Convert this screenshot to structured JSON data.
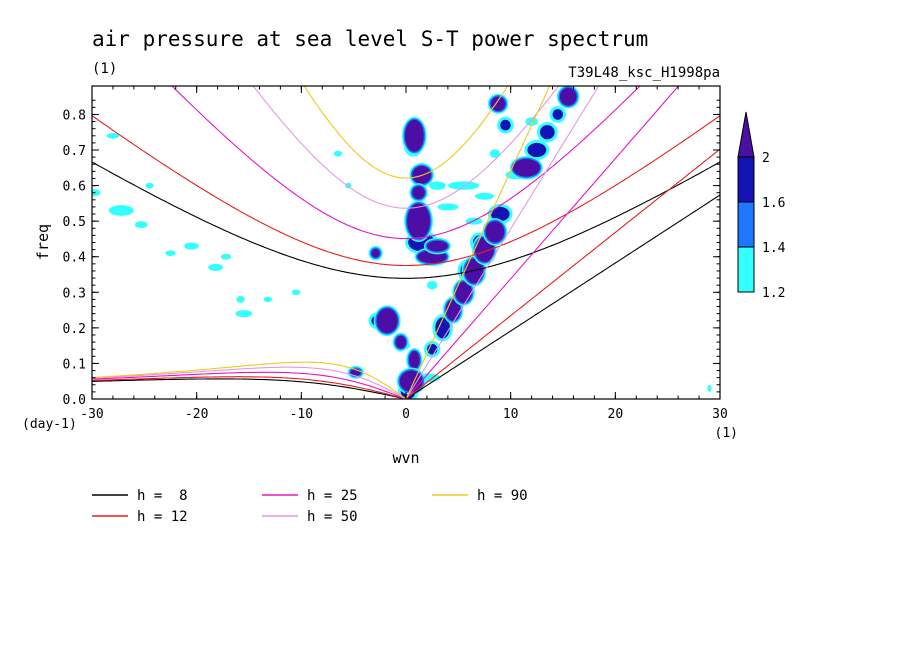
{
  "chart_data": {
    "type": "heatmap",
    "title": "air pressure at sea level S-T power spectrum",
    "subtitle_left": "(1)",
    "subtitle_right": "T39L48_ksc_H1998pa",
    "xlabel": "wvn",
    "ylabel": "freq",
    "x_unit": "(1)",
    "y_unit": "(day-1)",
    "xlim": [
      -30,
      30
    ],
    "ylim": [
      0,
      0.88
    ],
    "x_ticks": [
      -30,
      -20,
      -10,
      0,
      10,
      20,
      30
    ],
    "x_tick_labels": [
      "-30",
      "-20",
      "-10",
      "0",
      "10",
      "20",
      "30"
    ],
    "y_ticks": [
      0,
      0.1,
      0.2,
      0.3,
      0.4,
      0.5,
      0.6,
      0.7,
      0.8
    ],
    "y_tick_labels": [
      "0.0",
      "0.1",
      "0.2",
      "0.3",
      "0.4",
      "0.5",
      "0.6",
      "0.7",
      "0.8"
    ],
    "colorbar": {
      "levels": [
        "1.2",
        "1.4",
        "1.6",
        "2"
      ],
      "colors": [
        "#33ffff",
        "#1e78ff",
        "#1414b4",
        "#4b0fa5"
      ]
    },
    "dispersion_curves": [
      {
        "name": "h =  8",
        "h": 8,
        "color": "#000000"
      },
      {
        "name": "h = 12",
        "h": 12,
        "color": "#e61e1e"
      },
      {
        "name": "h = 25",
        "h": 25,
        "color": "#e614c8"
      },
      {
        "name": "h = 50",
        "h": 50,
        "color": "#e696e6"
      },
      {
        "name": "h = 90",
        "h": 90,
        "color": "#f0c81e"
      }
    ],
    "blobs": [
      {
        "x": 0.8,
        "y": 0.74,
        "rx": 0.9,
        "ry": 0.045,
        "level": 3
      },
      {
        "x": 0.7,
        "y": 0.71,
        "rx": 0.6,
        "ry": 0.02,
        "level": 2
      },
      {
        "x": 1.5,
        "y": 0.63,
        "rx": 0.9,
        "ry": 0.025,
        "level": 3
      },
      {
        "x": 1.2,
        "y": 0.58,
        "rx": 0.6,
        "ry": 0.018,
        "level": 3
      },
      {
        "x": 1.2,
        "y": 0.5,
        "rx": 1.1,
        "ry": 0.05,
        "level": 3
      },
      {
        "x": 1.5,
        "y": 0.44,
        "rx": 1.3,
        "ry": 0.025,
        "level": 2
      },
      {
        "x": 2.5,
        "y": 0.4,
        "rx": 1.4,
        "ry": 0.018,
        "level": 3
      },
      {
        "x": 3.0,
        "y": 0.43,
        "rx": 1.0,
        "ry": 0.015,
        "level": 3
      },
      {
        "x": -2.9,
        "y": 0.41,
        "rx": 0.4,
        "ry": 0.012,
        "level": 3
      },
      {
        "x": -1.8,
        "y": 0.22,
        "rx": 1.0,
        "ry": 0.035,
        "level": 3
      },
      {
        "x": -2.7,
        "y": 0.22,
        "rx": 0.6,
        "ry": 0.015,
        "level": 2
      },
      {
        "x": -0.5,
        "y": 0.16,
        "rx": 0.5,
        "ry": 0.018,
        "level": 3
      },
      {
        "x": 0.8,
        "y": 0.11,
        "rx": 0.5,
        "ry": 0.025,
        "level": 3
      },
      {
        "x": 0.5,
        "y": 0.05,
        "rx": 1.1,
        "ry": 0.03,
        "level": 3
      },
      {
        "x": 0.2,
        "y": 0.02,
        "rx": 0.7,
        "ry": 0.02,
        "level": 2
      },
      {
        "x": -4.8,
        "y": 0.075,
        "rx": 0.5,
        "ry": 0.01,
        "level": 3
      },
      {
        "x": 2.5,
        "y": 0.14,
        "rx": 0.5,
        "ry": 0.015,
        "level": 2
      },
      {
        "x": 3.5,
        "y": 0.2,
        "rx": 0.7,
        "ry": 0.03,
        "level": 2
      },
      {
        "x": 4.5,
        "y": 0.25,
        "rx": 0.7,
        "ry": 0.03,
        "level": 3
      },
      {
        "x": 5.5,
        "y": 0.3,
        "rx": 0.8,
        "ry": 0.03,
        "level": 3
      },
      {
        "x": 6.5,
        "y": 0.36,
        "rx": 0.9,
        "ry": 0.035,
        "level": 3
      },
      {
        "x": 7.5,
        "y": 0.42,
        "rx": 0.9,
        "ry": 0.035,
        "level": 3
      },
      {
        "x": 8.5,
        "y": 0.47,
        "rx": 0.9,
        "ry": 0.03,
        "level": 3
      },
      {
        "x": 6.0,
        "y": 0.36,
        "rx": 0.8,
        "ry": 0.025,
        "level": 2
      },
      {
        "x": 7.0,
        "y": 0.44,
        "rx": 0.6,
        "ry": 0.02,
        "level": 2
      },
      {
        "x": 9.0,
        "y": 0.52,
        "rx": 0.9,
        "ry": 0.02,
        "level": 2
      },
      {
        "x": 11.5,
        "y": 0.65,
        "rx": 1.3,
        "ry": 0.025,
        "level": 3
      },
      {
        "x": 12.5,
        "y": 0.7,
        "rx": 0.9,
        "ry": 0.02,
        "level": 2
      },
      {
        "x": 13.5,
        "y": 0.75,
        "rx": 0.7,
        "ry": 0.02,
        "level": 2
      },
      {
        "x": 15.5,
        "y": 0.85,
        "rx": 0.8,
        "ry": 0.025,
        "level": 3
      },
      {
        "x": 8.8,
        "y": 0.83,
        "rx": 0.7,
        "ry": 0.02,
        "level": 3
      },
      {
        "x": 9.5,
        "y": 0.77,
        "rx": 0.5,
        "ry": 0.015,
        "level": 2
      },
      {
        "x": 14.5,
        "y": 0.8,
        "rx": 0.5,
        "ry": 0.015,
        "level": 2
      },
      {
        "x": -28,
        "y": 0.74,
        "rx": 0.6,
        "ry": 0.008,
        "level": 1
      },
      {
        "x": -29.8,
        "y": 0.58,
        "rx": 0.6,
        "ry": 0.01,
        "level": 1
      },
      {
        "x": -27.2,
        "y": 0.53,
        "rx": 1.2,
        "ry": 0.015,
        "level": 1
      },
      {
        "x": -25.3,
        "y": 0.49,
        "rx": 0.6,
        "ry": 0.01,
        "level": 1
      },
      {
        "x": -24.5,
        "y": 0.6,
        "rx": 0.4,
        "ry": 0.008,
        "level": 1
      },
      {
        "x": -20.5,
        "y": 0.43,
        "rx": 0.7,
        "ry": 0.01,
        "level": 1
      },
      {
        "x": -22.5,
        "y": 0.41,
        "rx": 0.5,
        "ry": 0.008,
        "level": 1
      },
      {
        "x": -18.2,
        "y": 0.37,
        "rx": 0.7,
        "ry": 0.01,
        "level": 1
      },
      {
        "x": -17.2,
        "y": 0.4,
        "rx": 0.5,
        "ry": 0.008,
        "level": 1
      },
      {
        "x": -15.5,
        "y": 0.24,
        "rx": 0.8,
        "ry": 0.01,
        "level": 1
      },
      {
        "x": -15.8,
        "y": 0.28,
        "rx": 0.4,
        "ry": 0.01,
        "level": 1
      },
      {
        "x": -13.2,
        "y": 0.28,
        "rx": 0.4,
        "ry": 0.008,
        "level": 1
      },
      {
        "x": -10.5,
        "y": 0.3,
        "rx": 0.4,
        "ry": 0.008,
        "level": 1
      },
      {
        "x": -6.5,
        "y": 0.69,
        "rx": 0.4,
        "ry": 0.008,
        "level": 1
      },
      {
        "x": -5.5,
        "y": 0.6,
        "rx": 0.3,
        "ry": 0.008,
        "level": 1
      },
      {
        "x": 3.0,
        "y": 0.6,
        "rx": 0.8,
        "ry": 0.012,
        "level": 1
      },
      {
        "x": 5.5,
        "y": 0.6,
        "rx": 1.5,
        "ry": 0.012,
        "level": 1
      },
      {
        "x": 4.0,
        "y": 0.54,
        "rx": 1.0,
        "ry": 0.01,
        "level": 1
      },
      {
        "x": 6.5,
        "y": 0.5,
        "rx": 0.8,
        "ry": 0.01,
        "level": 1
      },
      {
        "x": 7.5,
        "y": 0.57,
        "rx": 0.9,
        "ry": 0.01,
        "level": 1
      },
      {
        "x": 10.5,
        "y": 0.63,
        "rx": 1.0,
        "ry": 0.012,
        "level": 1
      },
      {
        "x": 12.0,
        "y": 0.78,
        "rx": 0.6,
        "ry": 0.012,
        "level": 1
      },
      {
        "x": 8.5,
        "y": 0.69,
        "rx": 0.5,
        "ry": 0.012,
        "level": 1
      },
      {
        "x": 2.5,
        "y": 0.32,
        "rx": 0.5,
        "ry": 0.012,
        "level": 1
      },
      {
        "x": -0.3,
        "y": 0.15,
        "rx": 0.7,
        "ry": 0.012,
        "level": 1
      },
      {
        "x": 2.0,
        "y": 0.06,
        "rx": 1.3,
        "ry": 0.012,
        "level": 1
      },
      {
        "x": 29.0,
        "y": 0.03,
        "rx": 0.2,
        "ry": 0.01,
        "level": 1
      }
    ]
  }
}
